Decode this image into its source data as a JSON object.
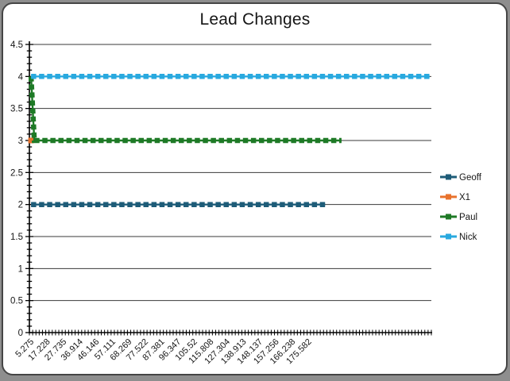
{
  "window": {
    "outer_background": "#8e8e8e",
    "surface_background": "#ffffff",
    "border_color": "#454545"
  },
  "chart_data": {
    "type": "line",
    "title": "Lead Changes",
    "xlabel": "",
    "ylabel": "",
    "grid": "horizontal-major",
    "legend_position": "right",
    "y_axis": {
      "min": 0,
      "max": 4.5,
      "major_step": 0.5,
      "minor_step": 0.1,
      "tick_labels": [
        "0",
        "0.5",
        "1",
        "1.5",
        "2",
        "2.5",
        "3",
        "3.5",
        "4",
        "4.5"
      ]
    },
    "x_axis": {
      "n_categories": 123,
      "label_interval": 5,
      "tick_labels": [
        "5.275",
        "17.228",
        "27.735",
        "36.914",
        "46.146",
        "57.111",
        "68.269",
        "77.522",
        "87.381",
        "96.347",
        "105.52",
        "115.808",
        "127.304",
        "138.913",
        "148.137",
        "157.256",
        "166.238",
        "175.582"
      ]
    },
    "series": [
      {
        "name": "Geoff",
        "color": "#1e5c78",
        "values_rle": [
          [
            91,
            2
          ]
        ]
      },
      {
        "name": "X1",
        "color": "#e8722c",
        "values_rle": [
          [
            1,
            3
          ]
        ]
      },
      {
        "name": "Paul",
        "color": "#1e7a26",
        "values_rle": [
          [
            1,
            4
          ],
          [
            95,
            3
          ]
        ]
      },
      {
        "name": "Nick",
        "color": "#29a9df",
        "values_rle": [
          [
            123,
            4
          ]
        ]
      }
    ],
    "legend_labels": [
      "Geoff",
      "X1",
      "Paul",
      "Nick"
    ],
    "axis_color": "#000000",
    "gridline_color": "#3a3a3a",
    "text_color": "#161616"
  }
}
